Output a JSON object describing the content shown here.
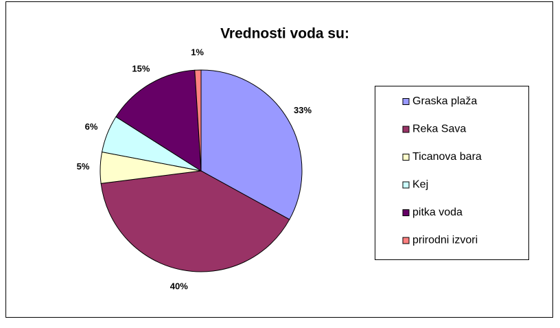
{
  "chart_data": {
    "type": "pie",
    "title": "Vrednosti voda su:",
    "categories": [
      "Graska plaža",
      "Reka Sava",
      "Ticanova bara",
      "Kej",
      "pitka voda",
      "prirodni izvori"
    ],
    "values": [
      33,
      40,
      5,
      6,
      15,
      1
    ],
    "value_labels": [
      "33%",
      "40%",
      "5%",
      "6%",
      "15%",
      "1%"
    ],
    "colors": [
      "#9999ff",
      "#993366",
      "#ffffcc",
      "#ccffff",
      "#660066",
      "#ff8080"
    ],
    "legend": "right"
  }
}
